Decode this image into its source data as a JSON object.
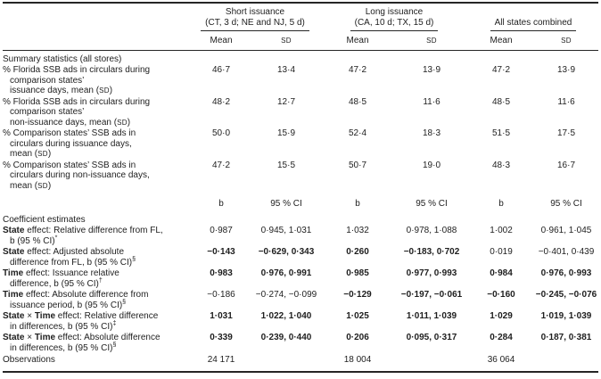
{
  "ink_color": "#1e1e1e",
  "table": {
    "groups": [
      {
        "title": [
          "Short issuance",
          "(CT, 3 d; NE and NJ, 5 d)"
        ]
      },
      {
        "title": [
          "Long issuance",
          "(CA, 10 d; TX, 15 d)"
        ]
      },
      {
        "title": [
          "All states combined"
        ]
      }
    ],
    "subcols": {
      "mean": "Mean",
      "sd": "SD"
    },
    "rows": [
      {
        "kind": "section",
        "label": "Summary statistics (all stores)"
      },
      {
        "kind": "data",
        "lines": [
          [
            {
              "t": "% Florida SSB ads in circulars during"
            }
          ],
          [
            {
              "t": "comparison states’"
            }
          ],
          [
            {
              "t": "issuance days, mean ("
            },
            {
              "t": "SD",
              "sc": true
            },
            {
              "t": ")"
            }
          ]
        ],
        "cells": [
          {
            "v": "46·7"
          },
          {
            "v": "13·4"
          },
          {
            "v": "47·2"
          },
          {
            "v": "13·9"
          },
          {
            "v": "47·2"
          },
          {
            "v": "13·9"
          }
        ]
      },
      {
        "kind": "data",
        "lines": [
          [
            {
              "t": "% Florida SSB ads in circulars during"
            }
          ],
          [
            {
              "t": "comparison states’"
            }
          ],
          [
            {
              "t": "non-issuance days, mean ("
            },
            {
              "t": "SD",
              "sc": true
            },
            {
              "t": ")"
            }
          ]
        ],
        "cells": [
          {
            "v": "48·2"
          },
          {
            "v": "12·7"
          },
          {
            "v": "48·5"
          },
          {
            "v": "11·6"
          },
          {
            "v": "48·5"
          },
          {
            "v": "11·6"
          }
        ]
      },
      {
        "kind": "data",
        "lines": [
          [
            {
              "t": "% Comparison states’ SSB ads in"
            }
          ],
          [
            {
              "t": "circulars during issuance days,"
            }
          ],
          [
            {
              "t": "mean ("
            },
            {
              "t": "SD",
              "sc": true
            },
            {
              "t": ")"
            }
          ]
        ],
        "cells": [
          {
            "v": "50·0"
          },
          {
            "v": "15·9"
          },
          {
            "v": "52·4"
          },
          {
            "v": "18·3"
          },
          {
            "v": "51·5"
          },
          {
            "v": "17·5"
          }
        ]
      },
      {
        "kind": "data",
        "lines": [
          [
            {
              "t": "% Comparison states’ SSB ads in"
            }
          ],
          [
            {
              "t": "circulars during non-issuance days,"
            }
          ],
          [
            {
              "t": "mean ("
            },
            {
              "t": "SD",
              "sc": true
            },
            {
              "t": ")"
            }
          ]
        ],
        "cells": [
          {
            "v": "47·2"
          },
          {
            "v": "15·5"
          },
          {
            "v": "50·7"
          },
          {
            "v": "19·0"
          },
          {
            "v": "48·3"
          },
          {
            "v": "16·7"
          }
        ]
      },
      {
        "kind": "subhead",
        "cells": [
          {
            "v": "b"
          },
          {
            "v": "95 % CI"
          },
          {
            "v": "b"
          },
          {
            "v": "95 % CI"
          },
          {
            "v": "b"
          },
          {
            "v": "95 % CI"
          }
        ]
      },
      {
        "kind": "section",
        "label": "Coefficient estimates"
      },
      {
        "kind": "coef",
        "lines": [
          [
            {
              "t": "State",
              "b": true
            },
            {
              "t": " effect: Relative difference from FL,"
            }
          ],
          [
            {
              "t": "b (95 % CI)"
            },
            {
              "t": "*",
              "sup": true
            }
          ]
        ],
        "cells": [
          {
            "v": "0·987"
          },
          {
            "v": "0·945, 1·031"
          },
          {
            "v": "1·032"
          },
          {
            "v": "0·978, 1·088"
          },
          {
            "v": "1·002"
          },
          {
            "v": "0·961, 1·045"
          }
        ]
      },
      {
        "kind": "coef",
        "lines": [
          [
            {
              "t": "State",
              "b": true
            },
            {
              "t": " effect: Adjusted absolute"
            }
          ],
          [
            {
              "t": "difference from FL, b (95 % CI)"
            },
            {
              "t": "§",
              "sup": true
            }
          ]
        ],
        "cells": [
          {
            "v": "−0·143",
            "b": true
          },
          {
            "v": "−0·629, 0·343",
            "b": true
          },
          {
            "v": "0·260",
            "b": true
          },
          {
            "v": "−0·183, 0·702",
            "b": true
          },
          {
            "v": "0·019"
          },
          {
            "v": "−0·401, 0·439"
          }
        ]
      },
      {
        "kind": "coef",
        "lines": [
          [
            {
              "t": "Time",
              "b": true
            },
            {
              "t": " effect: Issuance relative"
            }
          ],
          [
            {
              "t": "difference, b (95 % CI)"
            },
            {
              "t": "†",
              "sup": true
            }
          ]
        ],
        "cells": [
          {
            "v": "0·983",
            "b": true
          },
          {
            "v": "0·976, 0·991",
            "b": true
          },
          {
            "v": "0·985",
            "b": true
          },
          {
            "v": "0·977, 0·993",
            "b": true
          },
          {
            "v": "0·984",
            "b": true
          },
          {
            "v": "0·976, 0·993",
            "b": true
          }
        ]
      },
      {
        "kind": "coef",
        "lines": [
          [
            {
              "t": "Time",
              "b": true
            },
            {
              "t": " effect: Absolute difference from"
            }
          ],
          [
            {
              "t": "issuance period, b (95 % CI)"
            },
            {
              "t": "§",
              "sup": true
            }
          ]
        ],
        "cells": [
          {
            "v": "−0·186"
          },
          {
            "v": "−0·274, −0·099"
          },
          {
            "v": "−0·129",
            "b": true
          },
          {
            "v": "−0·197, −0·061",
            "b": true
          },
          {
            "v": "−0·160",
            "b": true
          },
          {
            "v": "−0·245, −0·076",
            "b": true
          }
        ]
      },
      {
        "kind": "coef",
        "lines": [
          [
            {
              "t": "State",
              "b": true
            },
            {
              "t": " × "
            },
            {
              "t": "Time",
              "b": true
            },
            {
              "t": " effect: Relative difference"
            }
          ],
          [
            {
              "t": "in differences, b (95 % CI)"
            },
            {
              "t": "‡",
              "sup": true
            }
          ]
        ],
        "cells": [
          {
            "v": "1·031",
            "b": true
          },
          {
            "v": "1·022, 1·040",
            "b": true
          },
          {
            "v": "1·025",
            "b": true
          },
          {
            "v": "1·011, 1·039",
            "b": true
          },
          {
            "v": "1·029",
            "b": true
          },
          {
            "v": "1·019, 1·039",
            "b": true
          }
        ]
      },
      {
        "kind": "coef",
        "lines": [
          [
            {
              "t": "State",
              "b": true
            },
            {
              "t": " × "
            },
            {
              "t": "Time",
              "b": true
            },
            {
              "t": " effect: Absolute difference"
            }
          ],
          [
            {
              "t": "in differences, b (95 % CI)"
            },
            {
              "t": "§",
              "sup": true
            }
          ]
        ],
        "cells": [
          {
            "v": "0·339",
            "b": true
          },
          {
            "v": "0·239, 0·440",
            "b": true
          },
          {
            "v": "0·206",
            "b": true
          },
          {
            "v": "0·095, 0·317",
            "b": true
          },
          {
            "v": "0·284",
            "b": true
          },
          {
            "v": "0·187, 0·381",
            "b": true
          }
        ]
      },
      {
        "kind": "obs",
        "label": "Observations",
        "cells": [
          {
            "v": "24 171"
          },
          {
            "v": ""
          },
          {
            "v": "18 004"
          },
          {
            "v": ""
          },
          {
            "v": "36 064"
          },
          {
            "v": ""
          }
        ]
      }
    ]
  }
}
